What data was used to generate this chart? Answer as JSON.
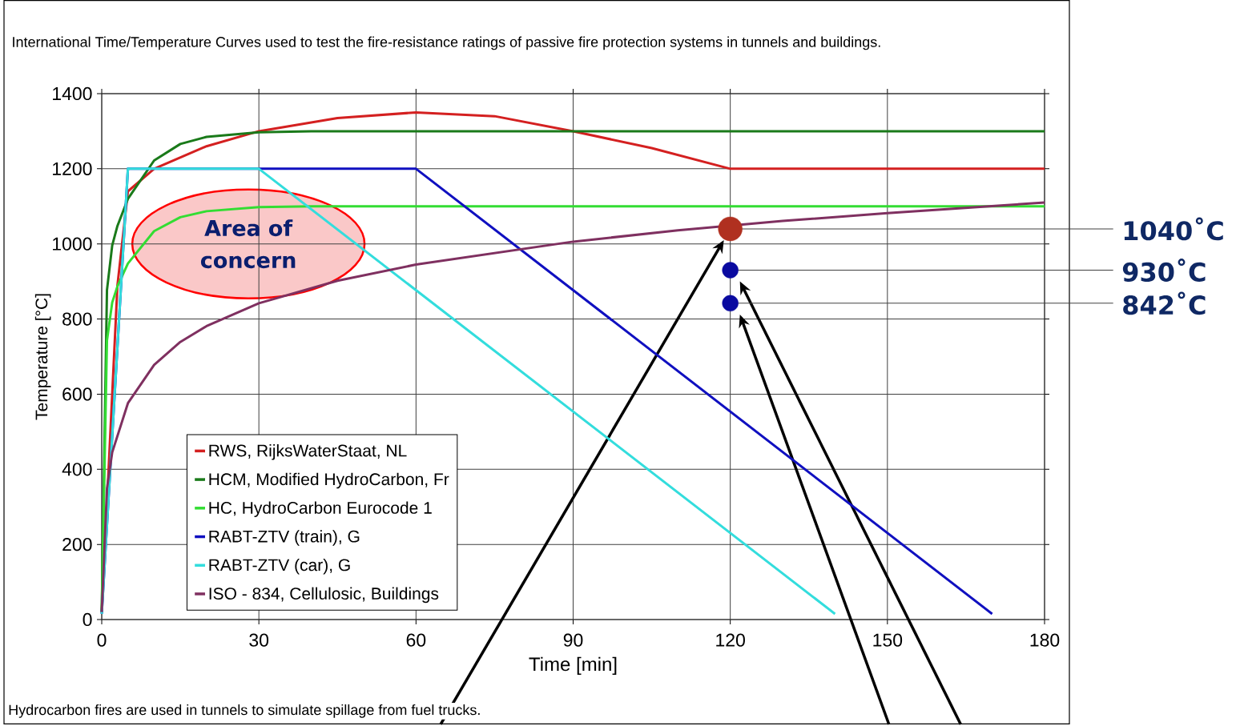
{
  "chart_data": {
    "type": "line",
    "title": "International Time/Temperature Curves used to test the fire-resistance ratings of passive fire protection systems in tunnels and buildings.",
    "xlabel": "Time [min]",
    "ylabel": "Temperature [°C]",
    "xlim": [
      0,
      180
    ],
    "ylim": [
      0,
      1400
    ],
    "xticks": [
      0,
      30,
      60,
      90,
      120,
      150,
      180
    ],
    "yticks": [
      0,
      200,
      400,
      600,
      800,
      1000,
      1200,
      1400
    ],
    "grid": true,
    "legend": "bottom left",
    "line_style": "solid",
    "series": [
      {
        "name": "RWS, RijksWaterStaat, NL",
        "color": "#d42020",
        "x": [
          0,
          3,
          5,
          10,
          20,
          30,
          45,
          60,
          75,
          90,
          105,
          120,
          180
        ],
        "values": [
          20,
          890,
          1140,
          1200,
          1260,
          1300,
          1335,
          1350,
          1340,
          1300,
          1255,
          1200,
          1200
        ]
      },
      {
        "name": "HCM, Modified HydroCarbon, Fr",
        "color": "#1a7a1a",
        "x": [
          0,
          1,
          2,
          3,
          5,
          10,
          15,
          20,
          30,
          40,
          180
        ],
        "values": [
          20,
          877,
          996,
          1048,
          1120,
          1222,
          1266,
          1285,
          1297,
          1300,
          1300
        ]
      },
      {
        "name": "HC, HydroCarbon Eurocode 1",
        "color": "#33dd33",
        "x": [
          0,
          1,
          2,
          3,
          5,
          10,
          15,
          20,
          30,
          40,
          180
        ],
        "values": [
          20,
          743,
          844,
          887,
          948,
          1034,
          1071,
          1087,
          1098,
          1100,
          1100
        ]
      },
      {
        "name": "RABT-ZTV (train), G",
        "color": "#1010c0",
        "x": [
          0,
          5,
          60,
          170
        ],
        "values": [
          15,
          1200,
          1200,
          15
        ]
      },
      {
        "name": "RABT-ZTV (car), G",
        "color": "#33dddd",
        "x": [
          0,
          5,
          30,
          140
        ],
        "values": [
          15,
          1200,
          1200,
          15
        ]
      },
      {
        "name": "ISO - 834, Cellulosic, Buildings",
        "color": "#7f3060",
        "x": [
          0,
          1,
          2,
          5,
          10,
          15,
          20,
          30,
          45,
          60,
          90,
          110,
          130,
          150,
          180
        ],
        "values": [
          20,
          349,
          445,
          576,
          678,
          739,
          781,
          842,
          902,
          945,
          1006,
          1036,
          1061,
          1082,
          1110
        ]
      },
      {
        "type": "scatter",
        "color": "#b03020",
        "x": [
          120
        ],
        "values": [
          1040
        ],
        "value_labels": [
          "1040˚C"
        ]
      },
      {
        "type": "scatter",
        "color": "#0a0aa0",
        "x": [
          120,
          120
        ],
        "values": [
          930,
          842
        ],
        "value_labels": [
          "930˚C",
          "842˚C"
        ]
      }
    ],
    "annotations": [
      "Area of concern",
      "Hydrocarbon fires are used in tunnels to simulate spillage from fuel trucks."
    ]
  }
}
